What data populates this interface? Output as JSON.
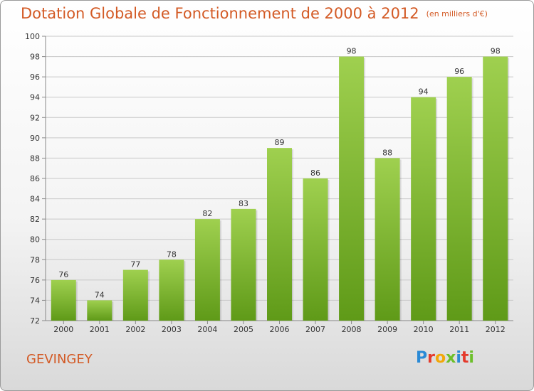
{
  "chart_data": {
    "type": "bar",
    "title": "Dotation Globale de Fonctionnement de 2000 à 2012",
    "subtitle": "(en milliers d'€)",
    "categories": [
      "2000",
      "2001",
      "2002",
      "2003",
      "2004",
      "2005",
      "2006",
      "2007",
      "2008",
      "2009",
      "2010",
      "2011",
      "2012"
    ],
    "values": [
      76,
      74,
      77,
      78,
      82,
      83,
      89,
      86,
      98,
      88,
      94,
      96,
      98
    ],
    "ylim": [
      72,
      100
    ],
    "yticks": [
      72,
      74,
      76,
      78,
      80,
      82,
      84,
      86,
      88,
      90,
      92,
      94,
      96,
      98,
      100
    ],
    "grid": true,
    "colors": {
      "bar_top": "#9fd04f",
      "bar_bottom": "#5f9a18",
      "grid": "#c8c8c8",
      "title": "#d35a25"
    }
  },
  "footer": {
    "commune": "GEVINGEY",
    "logo_text": "Proxiti",
    "logo_colors": [
      "#2a8ad6",
      "#e43a2c",
      "#f2a80a",
      "#6cbf2a",
      "#2a8ad6",
      "#e43a2c",
      "#6cbf2a"
    ]
  }
}
